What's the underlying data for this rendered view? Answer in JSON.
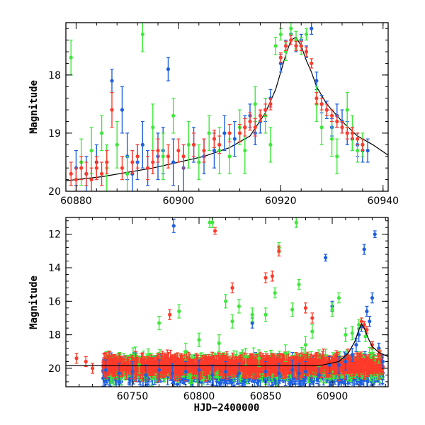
{
  "chart_data": [
    {
      "type": "scatter",
      "title": "",
      "xlabel": "",
      "ylabel": "Magnitude",
      "xlim": [
        60878,
        60941
      ],
      "ylim": [
        20,
        17.1
      ],
      "y_inverted": true,
      "xticks": [
        60880,
        60900,
        60920,
        60940
      ],
      "yticks": [
        18,
        19,
        20
      ],
      "colors": {
        "blue": "#1e5fe0",
        "green": "#3ee83a",
        "red": "#ff3a2a",
        "model": "#000000"
      },
      "model_curve": {
        "x": [
          60878,
          60885,
          60895,
          60900,
          60905,
          60910,
          60914,
          60917,
          60919,
          60920,
          60921,
          60922,
          60923,
          60924,
          60925,
          60926,
          60927,
          60929,
          60932,
          60935,
          60938,
          60941
        ],
        "y": [
          19.82,
          19.75,
          19.6,
          19.5,
          19.4,
          19.25,
          19.05,
          18.65,
          18.25,
          17.95,
          17.65,
          17.4,
          17.35,
          17.5,
          17.75,
          17.95,
          18.2,
          18.5,
          18.8,
          19.05,
          19.2,
          19.38
        ]
      },
      "series": [
        {
          "color": "blue",
          "x": [
            60880,
            60882,
            60884,
            60887,
            60889,
            60890,
            60891,
            60892,
            60893,
            60894,
            60896,
            60897,
            60898,
            60899,
            60901,
            60903,
            60905,
            60907,
            60909,
            60911,
            60913,
            60914,
            60915,
            60916,
            60917,
            60918,
            60920,
            60921,
            60922,
            60923,
            60924,
            60925,
            60926,
            60927,
            60928,
            60929,
            60930,
            60931,
            60932,
            60933,
            60934,
            60935,
            60936,
            60937
          ],
          "y": [
            19.6,
            19.7,
            19.5,
            18.1,
            18.6,
            19.4,
            19.7,
            19.5,
            19.2,
            19.6,
            19.4,
            19.3,
            17.9,
            19.5,
            19.6,
            19.2,
            19.4,
            19.3,
            19.0,
            19.1,
            18.9,
            18.7,
            19.0,
            18.8,
            18.6,
            18.4,
            17.8,
            17.5,
            17.3,
            17.5,
            17.4,
            17.6,
            17.2,
            18.1,
            18.5,
            18.6,
            18.9,
            18.7,
            18.8,
            19.0,
            19.1,
            19.2,
            19.3,
            19.3
          ],
          "err": [
            0.3,
            0.3,
            0.3,
            0.2,
            0.4,
            0.4,
            0.4,
            0.3,
            0.4,
            0.3,
            0.4,
            0.4,
            0.2,
            0.4,
            0.4,
            0.3,
            0.3,
            0.3,
            0.3,
            0.3,
            0.2,
            0.2,
            0.2,
            0.2,
            0.2,
            0.15,
            0.15,
            0.1,
            0.1,
            0.1,
            0.1,
            0.1,
            0.1,
            0.15,
            0.15,
            0.15,
            0.15,
            0.2,
            0.2,
            0.2,
            0.2,
            0.2,
            0.2,
            0.2
          ]
        },
        {
          "color": "green",
          "x": [
            60879,
            60881,
            60883,
            60885,
            60886,
            60888,
            60890,
            60893,
            60895,
            60897,
            60899,
            60902,
            60904,
            60906,
            60908,
            60910,
            60912,
            60913,
            60915,
            60917,
            60918,
            60919,
            60920,
            60921,
            60922,
            60923,
            60924,
            60925,
            60927,
            60928,
            60930,
            60931,
            60933,
            60934,
            60935,
            60936
          ],
          "y": [
            17.7,
            19.5,
            19.3,
            19.0,
            19.6,
            19.2,
            19.7,
            17.3,
            18.9,
            19.4,
            18.7,
            19.2,
            19.5,
            19.0,
            19.3,
            19.4,
            18.9,
            19.3,
            18.5,
            18.7,
            19.2,
            17.5,
            17.3,
            17.6,
            17.2,
            17.4,
            17.5,
            17.3,
            18.5,
            18.9,
            19.1,
            19.4,
            18.6,
            19.0,
            19.3,
            19.2
          ],
          "err": [
            0.3,
            0.4,
            0.4,
            0.3,
            0.4,
            0.4,
            0.3,
            0.3,
            0.4,
            0.4,
            0.3,
            0.4,
            0.3,
            0.3,
            0.4,
            0.3,
            0.3,
            0.4,
            0.3,
            0.3,
            0.3,
            0.15,
            0.1,
            0.15,
            0.1,
            0.15,
            0.15,
            0.1,
            0.3,
            0.3,
            0.3,
            0.3,
            0.3,
            0.3,
            0.2,
            0.2
          ]
        },
        {
          "color": "red",
          "x": [
            60879,
            60880,
            60881,
            60882,
            60883,
            60884,
            60885,
            60886,
            60887,
            60889,
            60891,
            60892,
            60894,
            60895,
            60896,
            60898,
            60900,
            60901,
            60903,
            60905,
            60907,
            60908,
            60910,
            60912,
            60913,
            60914,
            60915,
            60916,
            60917,
            60918,
            60920,
            60921,
            60922,
            60923,
            60924,
            60925,
            60926,
            60927,
            60928,
            60929,
            60930,
            60931,
            60932,
            60933,
            60934,
            60935,
            60936
          ],
          "y": [
            19.7,
            19.8,
            19.6,
            19.7,
            19.8,
            19.6,
            19.7,
            19.5,
            18.6,
            19.6,
            19.5,
            19.4,
            19.6,
            19.5,
            19.3,
            19.4,
            19.3,
            19.4,
            19.2,
            19.3,
            19.1,
            19.2,
            19.0,
            19.0,
            18.9,
            18.8,
            18.9,
            18.7,
            18.6,
            18.5,
            17.7,
            17.5,
            17.4,
            17.5,
            17.5,
            17.6,
            17.8,
            18.4,
            18.5,
            18.6,
            18.7,
            18.8,
            18.9,
            19.0,
            19.0,
            19.1,
            19.2
          ],
          "err": [
            0.2,
            0.2,
            0.2,
            0.2,
            0.2,
            0.2,
            0.2,
            0.2,
            0.3,
            0.2,
            0.2,
            0.2,
            0.2,
            0.2,
            0.2,
            0.2,
            0.2,
            0.2,
            0.2,
            0.2,
            0.15,
            0.15,
            0.15,
            0.15,
            0.15,
            0.15,
            0.15,
            0.1,
            0.1,
            0.1,
            0.08,
            0.08,
            0.08,
            0.08,
            0.08,
            0.08,
            0.08,
            0.1,
            0.1,
            0.1,
            0.1,
            0.1,
            0.1,
            0.1,
            0.1,
            0.1,
            0.1
          ]
        }
      ]
    },
    {
      "type": "scatter",
      "title": "",
      "xlabel": "HJD−2400000",
      "ylabel": "Magnitude",
      "xlim": [
        60700,
        60942
      ],
      "ylim": [
        21.1,
        11
      ],
      "y_inverted": true,
      "xticks": [
        60750,
        60800,
        60850,
        60900
      ],
      "yticks": [
        12,
        14,
        16,
        18,
        20
      ],
      "colors": {
        "blue": "#1e5fe0",
        "green": "#3ee83a",
        "red": "#ff3a2a",
        "model": "#000000"
      },
      "model_curve": {
        "x": [
          60700,
          60750,
          60800,
          60850,
          60890,
          60905,
          60912,
          60917,
          60920,
          60922,
          60924,
          60927,
          60930,
          60935,
          60942
        ],
        "y": [
          19.85,
          19.85,
          19.85,
          19.85,
          19.85,
          19.6,
          19.1,
          18.4,
          17.7,
          17.35,
          17.6,
          18.2,
          18.7,
          19.05,
          19.3
        ]
      },
      "series": [
        {
          "color": "blue",
          "x": [
            60730,
            60740,
            60750,
            60760,
            60770,
            60780,
            60781,
            60790,
            60800,
            60810,
            60820,
            60830,
            60840,
            60850,
            60860,
            60870,
            60875,
            60880,
            60890,
            60895,
            60898,
            60900,
            60905,
            60910,
            60915,
            60918,
            60920,
            60922,
            60924,
            60926,
            60928,
            60930,
            60932,
            60935,
            60938
          ],
          "y": [
            20.1,
            20.3,
            20.2,
            20.4,
            20.1,
            20.3,
            11.5,
            20.2,
            20.1,
            20.4,
            20.2,
            20.3,
            17.3,
            20.2,
            20.3,
            20.1,
            20.3,
            20.2,
            20.4,
            13.4,
            19.8,
            16.3,
            19.8,
            19.6,
            19.2,
            18.6,
            18.0,
            17.5,
            12.9,
            16.6,
            17.2,
            15.8,
            12.0,
            18.8,
            19.6
          ],
          "err": [
            0.6,
            0.6,
            0.6,
            0.6,
            0.6,
            0.6,
            0.4,
            0.6,
            0.6,
            0.6,
            0.6,
            0.6,
            0.3,
            0.6,
            0.6,
            0.6,
            0.6,
            0.6,
            0.6,
            0.2,
            0.5,
            0.3,
            0.5,
            0.5,
            0.4,
            0.4,
            0.4,
            0.3,
            0.3,
            0.3,
            0.3,
            0.3,
            0.2,
            0.3,
            0.4
          ],
          "bulk": {
            "x0": 60728,
            "x1": 60938,
            "ymid": 20.2,
            "spread": 0.55
          }
        },
        {
          "color": "green",
          "x": [
            60755,
            60770,
            60785,
            60790,
            60800,
            60808,
            60810,
            60815,
            60820,
            60825,
            60830,
            60835,
            60840,
            60845,
            60850,
            60857,
            60860,
            60865,
            60870,
            60873,
            60875,
            60880,
            60885,
            60890,
            60900,
            60905,
            60910,
            60915,
            60920,
            60925,
            60930,
            60935
          ],
          "y": [
            19.8,
            17.3,
            16.6,
            19.0,
            18.3,
            11.3,
            11.3,
            18.5,
            16.0,
            17.2,
            16.3,
            19.3,
            16.8,
            19.4,
            16.8,
            15.5,
            12.8,
            19.1,
            16.5,
            11.3,
            15.0,
            18.6,
            17.8,
            19.4,
            16.5,
            15.8,
            18.0,
            17.9,
            17.4,
            18.1,
            18.8,
            19.3
          ],
          "err": [
            0.5,
            0.4,
            0.4,
            0.5,
            0.4,
            0.3,
            0.3,
            0.5,
            0.4,
            0.4,
            0.4,
            0.5,
            0.4,
            0.5,
            0.4,
            0.3,
            0.3,
            0.5,
            0.4,
            0.3,
            0.3,
            0.5,
            0.4,
            0.5,
            0.4,
            0.3,
            0.4,
            0.4,
            0.3,
            0.3,
            0.4,
            0.4
          ],
          "bulk": {
            "x0": 60730,
            "x1": 60938,
            "ymid": 19.9,
            "spread": 0.5
          }
        },
        {
          "color": "red",
          "x": [
            60708,
            60715,
            60720,
            60778,
            60812,
            60825,
            60850,
            60855,
            60860,
            60880,
            60885,
            60890,
            60922,
            60924,
            60926,
            60930,
            60935
          ],
          "y": [
            19.4,
            19.6,
            20.0,
            16.8,
            11.8,
            15.2,
            14.6,
            14.5,
            13.0,
            16.4,
            17.0,
            19.5,
            17.2,
            17.4,
            17.7,
            18.6,
            19.2
          ],
          "err": [
            0.3,
            0.3,
            0.3,
            0.3,
            0.2,
            0.3,
            0.3,
            0.3,
            0.3,
            0.3,
            0.3,
            0.3,
            0.2,
            0.2,
            0.2,
            0.2,
            0.3
          ],
          "bulk": {
            "x0": 60728,
            "x1": 60938,
            "ymid": 19.85,
            "spread": 0.35
          }
        }
      ]
    }
  ]
}
